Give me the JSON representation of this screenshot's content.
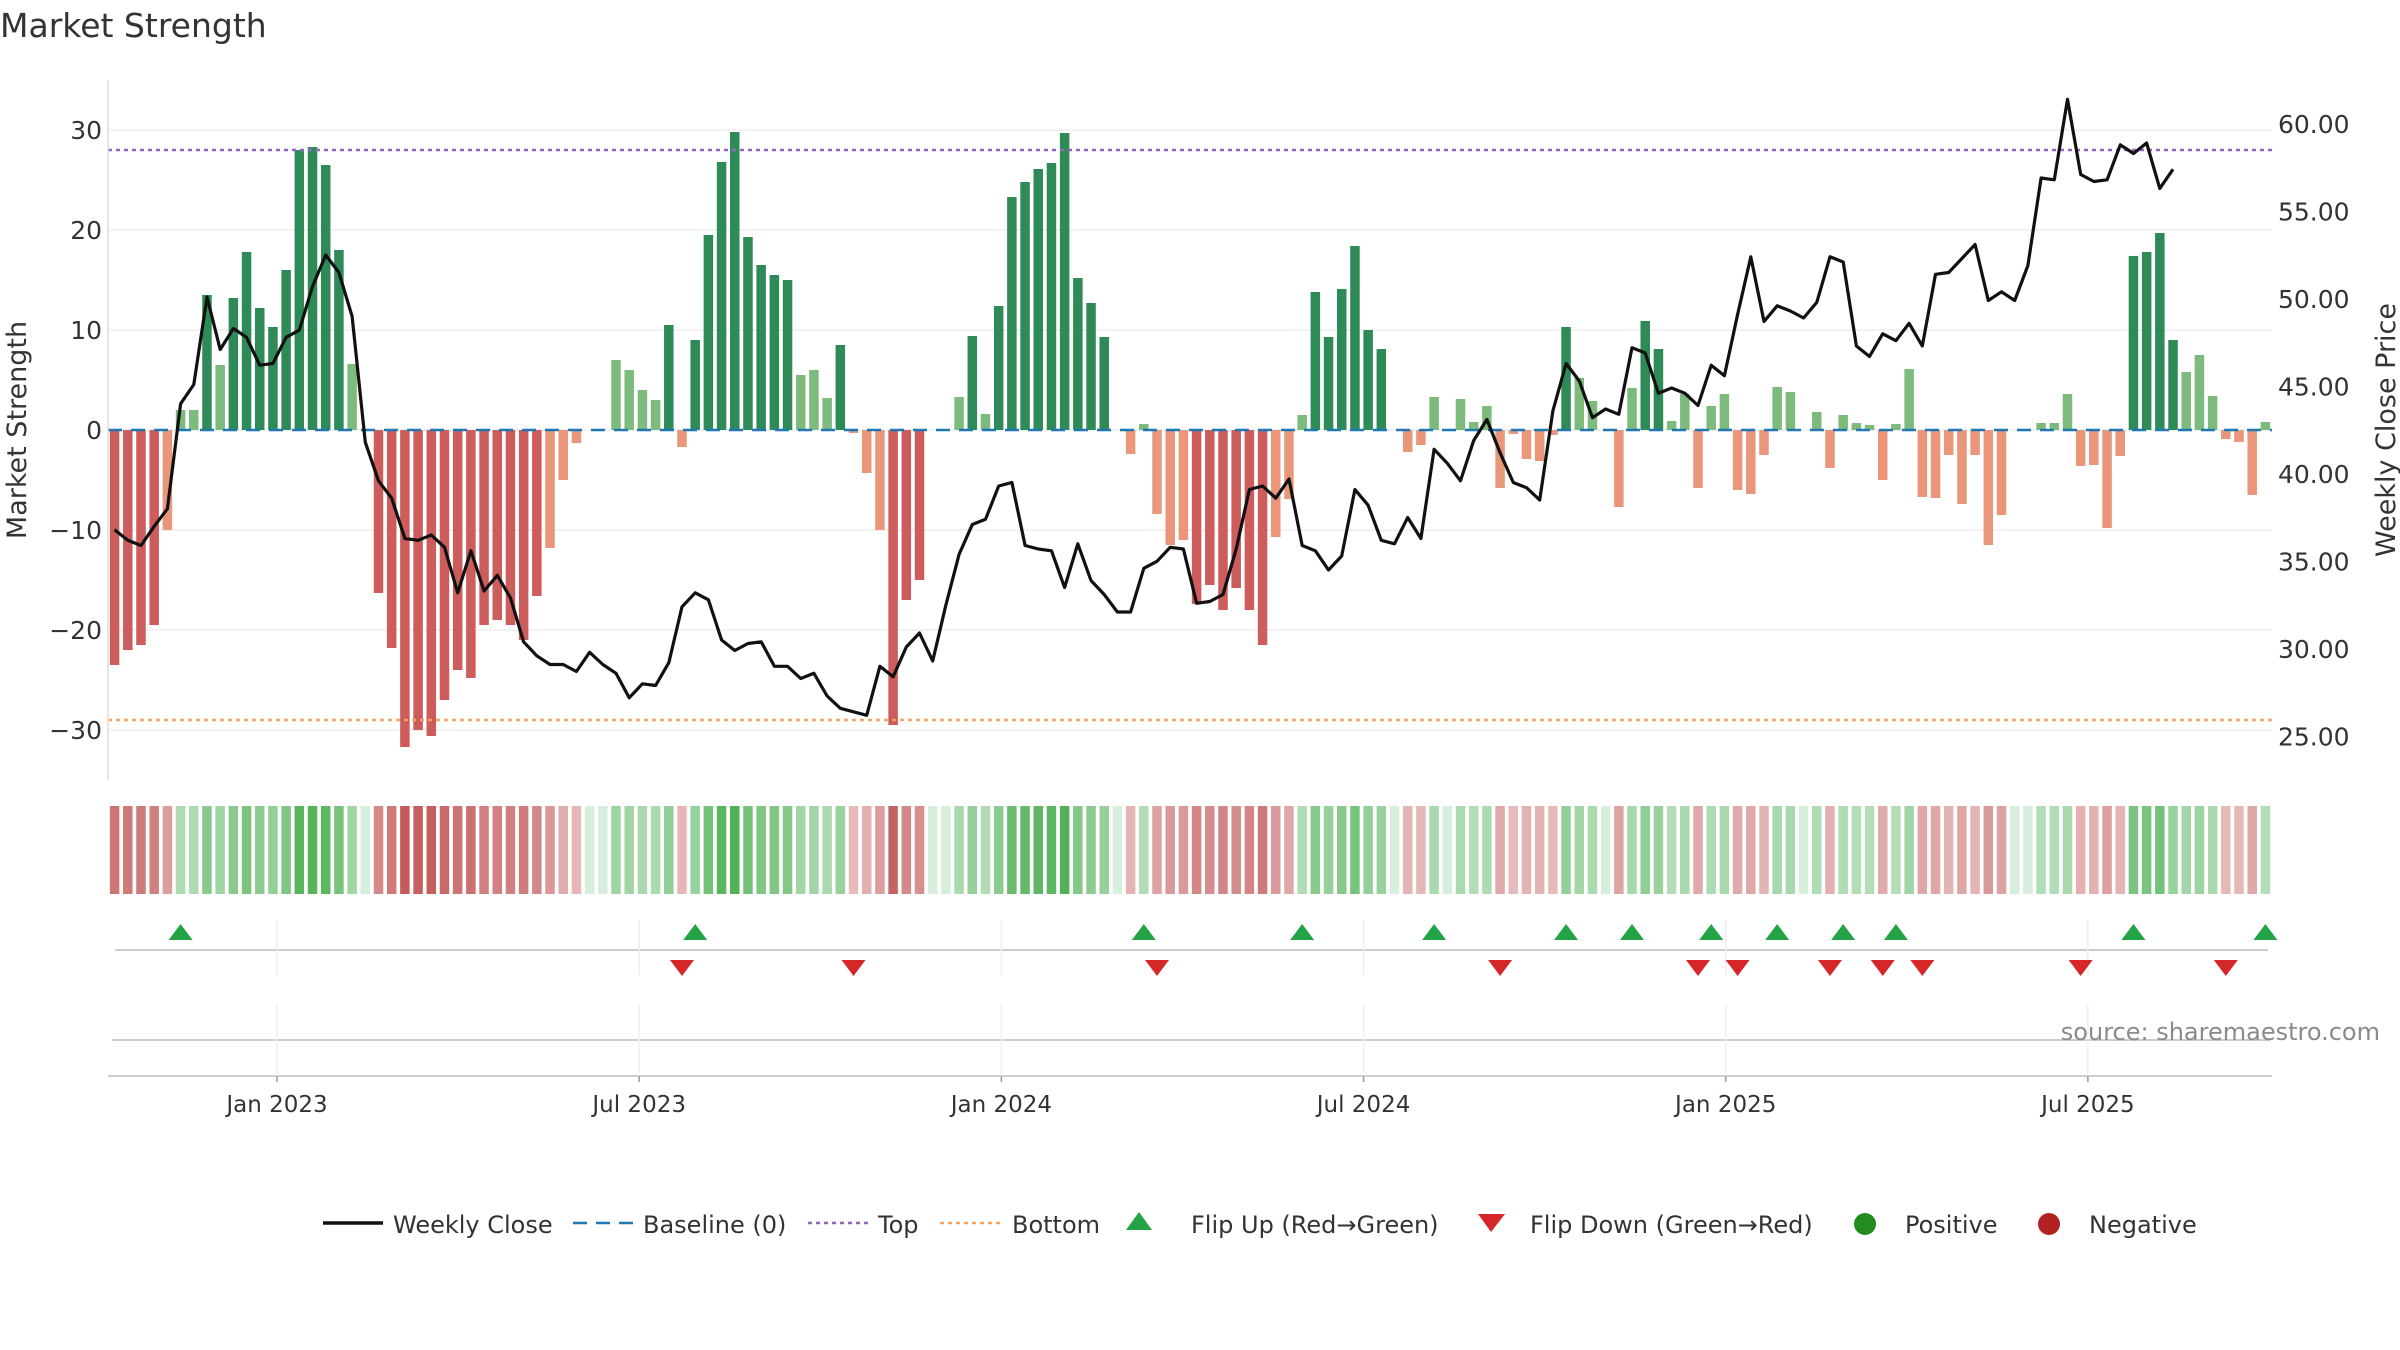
{
  "chart_data": {
    "type": "bar",
    "title": "Market Strength",
    "ylabel": "Market Strength",
    "y2label": "Weekly Close Price",
    "ylim": [
      -35,
      35
    ],
    "y2lim": [
      22.5,
      62.5
    ],
    "yticks": [
      30,
      20,
      10,
      0,
      -10,
      -20,
      -30
    ],
    "ytick_labels": [
      "30",
      "20",
      "10",
      "0",
      "−10",
      "−20",
      "−30"
    ],
    "y2ticks": [
      60,
      55,
      50,
      45,
      40,
      35,
      30,
      25
    ],
    "y2tick_labels": [
      "60.00",
      "55.00",
      "50.00",
      "45.00",
      "40.00",
      "35.00",
      "30.00",
      "25.00"
    ],
    "top_level": 28,
    "bottom_level": -29,
    "x_month_range": [
      -2.8,
      33.05
    ],
    "xticks": [
      {
        "label": "Jan 2023",
        "month": 0
      },
      {
        "label": "Jul 2023",
        "month": 6
      },
      {
        "label": "Jan 2024",
        "month": 12
      },
      {
        "label": "Jul 2024",
        "month": 18
      },
      {
        "label": "Jan 2025",
        "month": 24
      },
      {
        "label": "Jul 2025",
        "month": 30
      }
    ],
    "strength": [
      -23.5,
      -22,
      -21.5,
      -19.5,
      -10,
      2,
      2,
      13.5,
      6.5,
      13.2,
      17.8,
      12.2,
      10.3,
      16,
      28,
      28.3,
      26.5,
      18,
      6.6,
      0,
      -16.3,
      -21.8,
      -31.7,
      -30,
      -30.6,
      -27,
      -24,
      -24.8,
      -19.5,
      -19,
      -19.5,
      -21,
      -16.6,
      -11.8,
      -5,
      -1.3,
      0,
      0,
      7,
      6,
      4,
      3,
      10.5,
      -1.7,
      9,
      19.5,
      26.8,
      29.8,
      19.3,
      16.5,
      15.5,
      15,
      5.5,
      6,
      3.2,
      8.5,
      -0.3,
      -4.3,
      -10,
      -29.5,
      -17,
      -15,
      0,
      0,
      3.3,
      9.4,
      1.6,
      12.4,
      23.3,
      24.8,
      26.1,
      26.7,
      29.7,
      15.2,
      12.7,
      9.3,
      0,
      -2.4,
      0.6,
      -8.4,
      -11.5,
      -11,
      -17.4,
      -15.5,
      -18,
      -15.8,
      -18,
      -21.5,
      -10.7,
      -6.9,
      1.5,
      13.8,
      9.3,
      14.1,
      18.4,
      10,
      8.1,
      0,
      -2.2,
      -1.5,
      3.3,
      0,
      3.1,
      0.8,
      2.4,
      -5.8,
      -0.4,
      -2.9,
      -3.1,
      -0.5,
      10.3,
      5.2,
      2.9,
      0,
      -7.7,
      4.2,
      10.9,
      8.1,
      0.9,
      3.6,
      -5.8,
      2.4,
      3.6,
      -6,
      -6.4,
      -2.5,
      4.3,
      3.8,
      0,
      1.8,
      -3.8,
      1.5,
      0.7,
      0.5,
      -5,
      0.6,
      6.1,
      -6.7,
      -6.8,
      -2.5,
      -7.4,
      -2.5,
      -11.5,
      -8.5,
      0,
      0,
      0.7,
      0.7,
      3.6,
      -3.6,
      -3.5,
      -9.8,
      -2.6,
      17.4,
      17.8,
      19.7,
      9,
      5.8,
      7.5,
      3.4,
      -0.9,
      -1.2,
      -6.5,
      0.8
    ],
    "close": [
      36.8,
      36.2,
      35.9,
      37,
      38,
      44,
      45.1,
      50.1,
      47.1,
      48.3,
      47.8,
      46.2,
      46.3,
      47.8,
      48.2,
      50.7,
      52.5,
      51.5,
      49,
      41.8,
      39.6,
      38.6,
      36.3,
      36.2,
      36.5,
      35.8,
      33.2,
      35.6,
      33.3,
      34.2,
      32.9,
      30.4,
      29.6,
      29.1,
      29.1,
      28.7,
      29.8,
      29.1,
      28.6,
      27.2,
      28,
      27.9,
      29.2,
      32.4,
      33.2,
      32.8,
      30.5,
      29.9,
      30.3,
      30.4,
      29,
      29,
      28.3,
      28.6,
      27.3,
      26.6,
      26.4,
      26.2,
      29,
      28.4,
      30.1,
      30.9,
      29.3,
      32.5,
      35.4,
      37.1,
      37.4,
      39.3,
      39.5,
      35.9,
      35.7,
      35.6,
      33.5,
      36,
      33.9,
      33.1,
      32.1,
      32.1,
      34.6,
      35,
      35.8,
      35.7,
      32.6,
      32.7,
      33.1,
      35.7,
      39.1,
      39.3,
      38.6,
      39.7,
      35.9,
      35.6,
      34.5,
      35.3,
      39.1,
      38.2,
      36.2,
      36,
      37.5,
      36.3,
      41.4,
      40.6,
      39.6,
      41.9,
      43.1,
      41.2,
      39.5,
      39.2,
      38.5,
      43.6,
      46.3,
      45.3,
      43.2,
      43.7,
      43.4,
      47.2,
      46.9,
      44.6,
      44.9,
      44.6,
      43.9,
      46.2,
      45.6,
      49.1,
      52.4,
      48.7,
      49.6,
      49.3,
      48.9,
      49.8,
      52.4,
      52.1,
      47.3,
      46.7,
      48,
      47.6,
      48.6,
      47.3,
      51.4,
      51.5,
      52.3,
      53.1,
      49.9,
      50.4,
      49.9,
      51.9,
      56.9,
      56.8,
      61.4,
      57.1,
      56.7,
      56.8,
      58.8,
      58.3,
      58.9,
      56.3,
      57.4
    ]
  },
  "legend": {
    "weekly_close": "Weekly Close",
    "baseline": "Baseline (0)",
    "top": "Top",
    "bottom": "Bottom",
    "flip_up": "Flip Up (Red→Green)",
    "flip_down": "Flip Down (Green→Red)",
    "positive": "Positive",
    "negative": "Negative"
  },
  "source_text": "source: sharemaestro.com",
  "colors": {
    "strong_green": "#2e8b57",
    "light_green": "#7dbb7d",
    "strong_red": "#cd5c5c",
    "light_red": "#e9967a",
    "close_line": "#111111",
    "baseline": "#1f77b4",
    "top_line": "#9467bd",
    "bottom_line": "#f4a460",
    "flip_up": "#22a346",
    "flip_down": "#d62728",
    "positive_dot": "#228b22",
    "negative_dot": "#b22222"
  }
}
